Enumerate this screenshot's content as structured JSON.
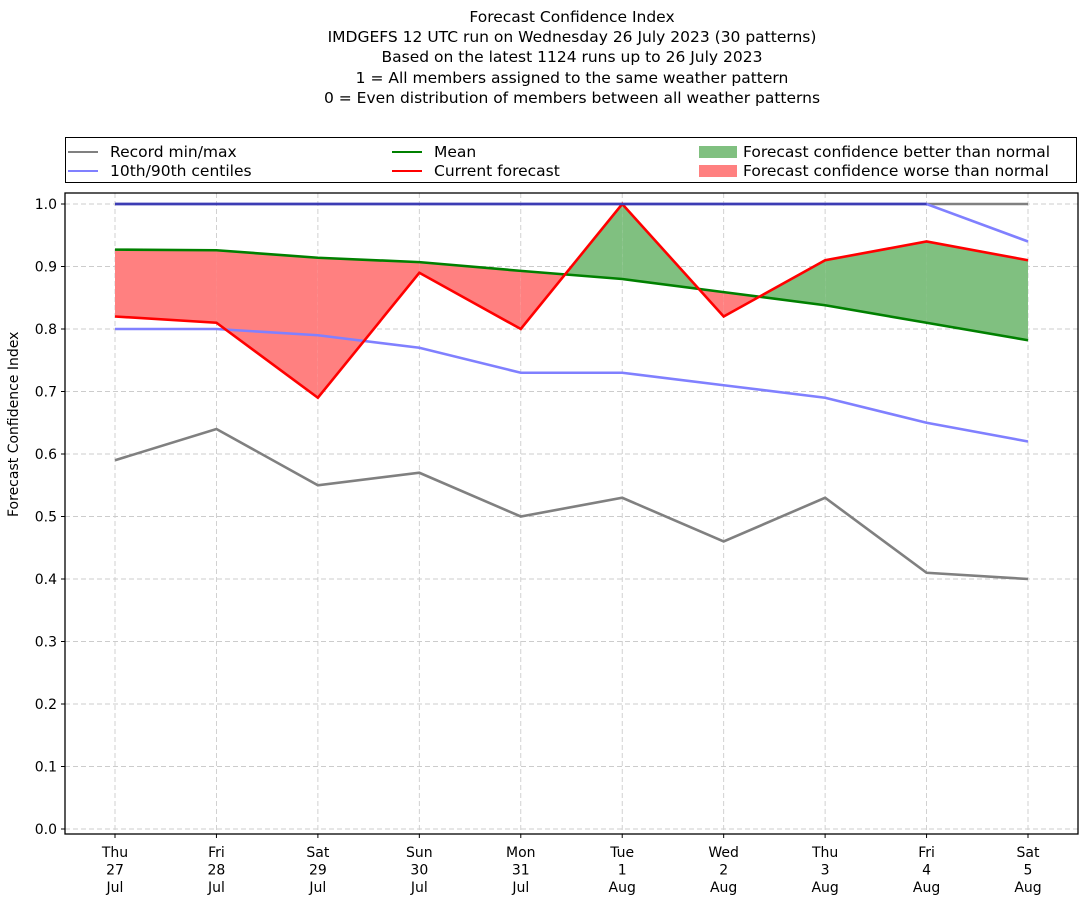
{
  "chart_data": {
    "type": "line",
    "title_lines": [
      "Forecast Confidence Index",
      "IMDGEFS 12 UTC run on Wednesday 26 July 2023 (30 patterns)",
      "Based on the latest 1124 runs up to 26 July 2023",
      "1 = All members assigned to the same weather pattern",
      "0 = Even distribution of members between all weather patterns"
    ],
    "xlabel": "",
    "ylabel": "Forecast Confidence Index",
    "ylim": [
      0.0,
      1.0
    ],
    "yticks": [
      "0.0",
      "0.1",
      "0.2",
      "0.3",
      "0.4",
      "0.5",
      "0.6",
      "0.7",
      "0.8",
      "0.9",
      "1.0"
    ],
    "grid": true,
    "categories": [
      {
        "day": "Thu",
        "date": "27",
        "month": "Jul"
      },
      {
        "day": "Fri",
        "date": "28",
        "month": "Jul"
      },
      {
        "day": "Sat",
        "date": "29",
        "month": "Jul"
      },
      {
        "day": "Sun",
        "date": "30",
        "month": "Jul"
      },
      {
        "day": "Mon",
        "date": "31",
        "month": "Jul"
      },
      {
        "day": "Tue",
        "date": "1",
        "month": "Aug"
      },
      {
        "day": "Wed",
        "date": "2",
        "month": "Aug"
      },
      {
        "day": "Thu",
        "date": "3",
        "month": "Aug"
      },
      {
        "day": "Fri",
        "date": "4",
        "month": "Aug"
      },
      {
        "day": "Sat",
        "date": "5",
        "month": "Aug"
      }
    ],
    "series": [
      {
        "name": "Record min",
        "legend": "Record min/max",
        "color": "#808080",
        "values": [
          0.59,
          0.64,
          0.55,
          0.57,
          0.5,
          0.53,
          0.46,
          0.53,
          0.41,
          0.4
        ]
      },
      {
        "name": "Record max",
        "legend": "Record min/max",
        "color": "#808080",
        "values": [
          1.0,
          1.0,
          1.0,
          1.0,
          1.0,
          1.0,
          1.0,
          1.0,
          1.0,
          1.0
        ]
      },
      {
        "name": "10th centile",
        "legend": "10th/90th centiles",
        "color": "#8080ff",
        "values": [
          0.8,
          0.8,
          0.79,
          0.77,
          0.73,
          0.73,
          0.71,
          0.69,
          0.65,
          0.62
        ]
      },
      {
        "name": "90th centile",
        "legend": "10th/90th centiles",
        "color": "#8080ff",
        "values": [
          1.0,
          1.0,
          1.0,
          1.0,
          1.0,
          1.0,
          1.0,
          1.0,
          1.0,
          0.94
        ]
      },
      {
        "name": "Mean",
        "legend": "Mean",
        "color": "#008000",
        "values": [
          0.927,
          0.926,
          0.914,
          0.907,
          0.893,
          0.88,
          0.859,
          0.838,
          0.81,
          0.782
        ]
      },
      {
        "name": "Current forecast",
        "legend": "Current forecast",
        "color": "#ff0000",
        "values": [
          0.82,
          0.81,
          0.69,
          0.89,
          0.8,
          1.0,
          0.82,
          0.91,
          0.94,
          0.91
        ]
      }
    ],
    "fills": [
      {
        "name": "Forecast confidence better than normal",
        "color": "#80c080",
        "condition": "forecast > mean"
      },
      {
        "name": "Forecast confidence worse than normal",
        "color": "#ff8080",
        "condition": "forecast < mean"
      }
    ],
    "legend": {
      "placement": "top, above plot, 3 columns",
      "entries": [
        {
          "label": "Record min/max",
          "kind": "line",
          "color": "#808080"
        },
        {
          "label": "10th/90th centiles",
          "kind": "line",
          "color": "#8080ff"
        },
        {
          "label": "Mean",
          "kind": "line",
          "color": "#008000"
        },
        {
          "label": "Current forecast",
          "kind": "line",
          "color": "#ff0000"
        },
        {
          "label": "Forecast confidence better than normal",
          "kind": "patch",
          "color": "#80c080"
        },
        {
          "label": "Forecast confidence worse than normal",
          "kind": "patch",
          "color": "#ff8080"
        }
      ]
    }
  }
}
